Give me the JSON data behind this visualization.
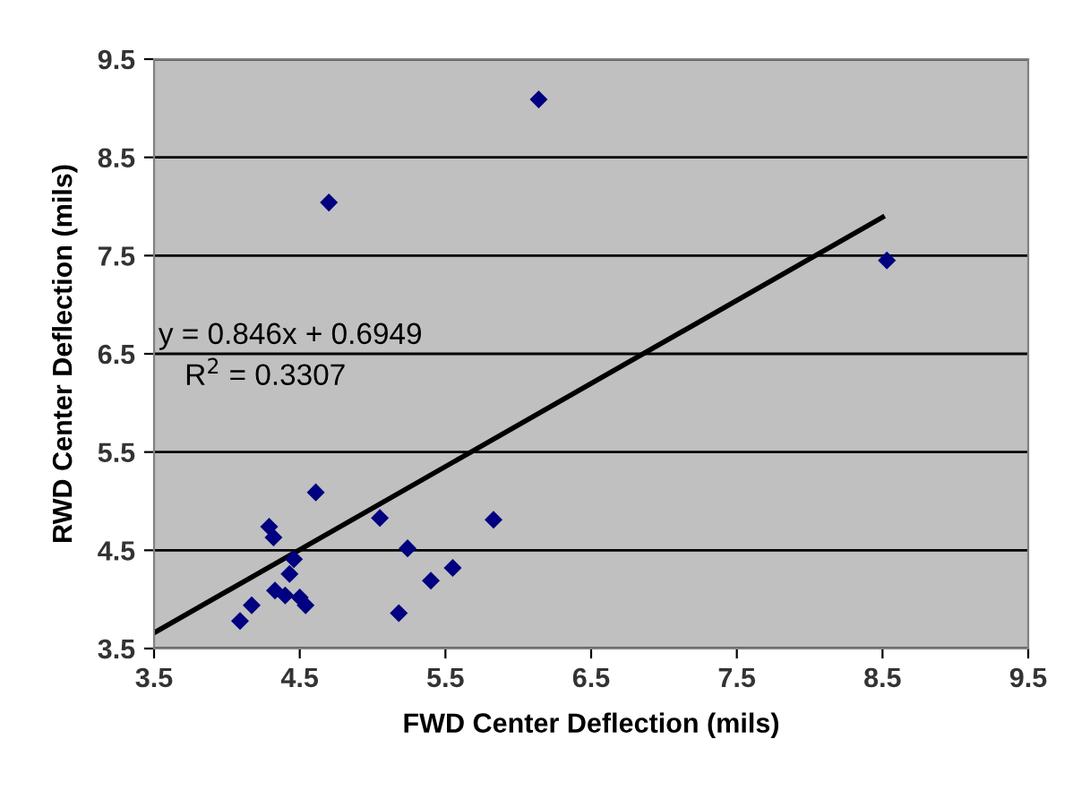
{
  "chart_data": {
    "type": "scatter",
    "xlabel": "FWD Center Deflection (mils)",
    "ylabel": "RWD Center Deflection (mils)",
    "xlim": [
      3.5,
      9.5
    ],
    "xticks": [
      3.5,
      4.5,
      5.5,
      6.5,
      7.5,
      8.5,
      9.5
    ],
    "ylim": [
      3.5,
      9.5
    ],
    "yticks": [
      3.5,
      4.5,
      5.5,
      6.5,
      7.5,
      8.5,
      9.5
    ],
    "grid": "y",
    "series": [
      {
        "marker": "diamond",
        "color": "#000080",
        "x": [
          4.09,
          4.17,
          4.29,
          4.32,
          4.61,
          4.46,
          4.43,
          4.33,
          4.4,
          4.5,
          4.54,
          5.05,
          5.24,
          5.18,
          5.4,
          5.55,
          5.83,
          6.14,
          4.7,
          8.53
        ],
        "values": [
          3.78,
          3.94,
          4.74,
          4.63,
          5.09,
          4.41,
          4.26,
          4.09,
          4.04,
          4.02,
          3.94,
          4.83,
          4.52,
          3.86,
          4.19,
          4.32,
          4.81,
          9.09,
          8.04,
          7.45
        ]
      },
      {
        "type": "line",
        "color": "#000000",
        "x": [
          3.5,
          8.5
        ],
        "values": [
          3.66,
          7.89
        ],
        "line_style": "solid"
      }
    ],
    "annotations": [
      "y = 0.846x + 0.6949",
      "R$^{2}$ = 0.3307"
    ]
  }
}
